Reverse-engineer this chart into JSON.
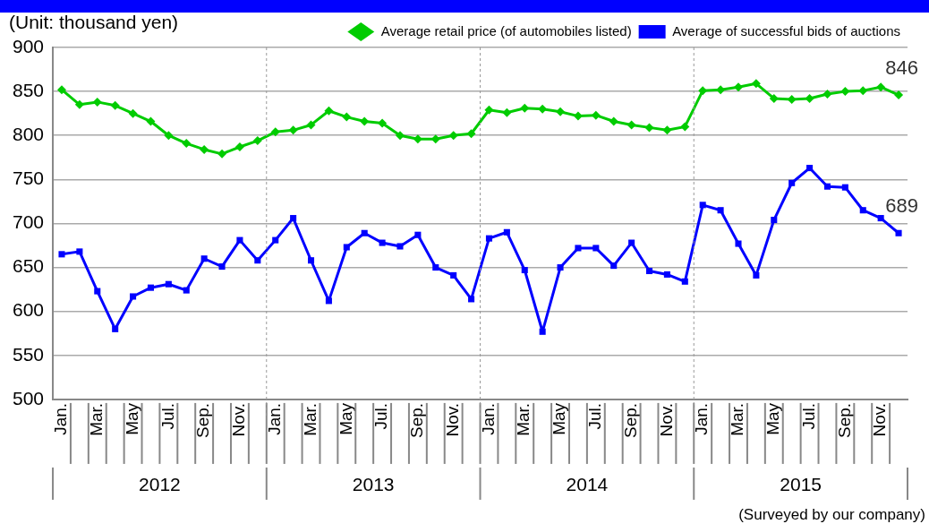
{
  "chart_data": {
    "type": "line",
    "ylabel": "(Unit: thousand yen)",
    "categories": [
      "Jan.",
      null,
      "Mar.",
      null,
      "May",
      null,
      "Jul.",
      null,
      "Sep.",
      null,
      "Nov.",
      null,
      "Jan.",
      null,
      "Mar.",
      null,
      "May",
      null,
      "Jul.",
      null,
      "Sep.",
      null,
      "Nov.",
      null,
      "Jan.",
      null,
      "Mar.",
      null,
      "May",
      null,
      "Jul.",
      null,
      "Sep.",
      null,
      "Nov.",
      null,
      "Jan.",
      null,
      "Mar.",
      null,
      "May",
      null,
      "Jul.",
      null,
      "Sep.",
      null,
      "Nov.",
      null
    ],
    "series": [
      {
        "name": "Average retail price (of automobiles listed)",
        "color": "#00cc00",
        "marker": "diamond",
        "values": [
          852,
          835,
          838,
          834,
          825,
          816,
          800,
          791,
          784,
          779,
          787,
          794,
          804,
          806,
          812,
          828,
          821,
          816,
          814,
          800,
          796,
          796,
          800,
          802,
          829,
          826,
          831,
          830,
          827,
          822,
          823,
          816,
          812,
          809,
          806,
          810,
          851,
          852,
          855,
          859,
          842,
          841,
          842,
          847,
          850,
          851,
          855,
          846
        ],
        "value_labels": [
          null,
          null,
          null,
          null,
          null,
          null,
          null,
          null,
          null,
          null,
          null,
          null,
          null,
          null,
          null,
          null,
          null,
          null,
          null,
          null,
          null,
          null,
          null,
          null,
          null,
          null,
          null,
          null,
          null,
          null,
          null,
          null,
          null,
          null,
          null,
          null,
          null,
          null,
          null,
          null,
          null,
          null,
          null,
          null,
          null,
          null,
          null,
          "846"
        ]
      },
      {
        "name": "Average of successful bids of auctions",
        "color": "#0000ff",
        "marker": "square",
        "values": [
          665,
          668,
          623,
          580,
          617,
          627,
          631,
          624,
          660,
          651,
          681,
          658,
          681,
          706,
          658,
          612,
          673,
          689,
          678,
          674,
          687,
          650,
          641,
          614,
          683,
          690,
          647,
          577,
          650,
          672,
          672,
          652,
          678,
          646,
          642,
          634,
          721,
          715,
          677,
          641,
          704,
          746,
          763,
          742,
          741,
          715,
          706,
          689
        ],
        "value_labels": [
          null,
          null,
          null,
          null,
          null,
          null,
          null,
          null,
          null,
          null,
          null,
          null,
          null,
          null,
          null,
          null,
          null,
          null,
          null,
          null,
          null,
          null,
          null,
          null,
          null,
          null,
          null,
          null,
          null,
          null,
          null,
          null,
          null,
          null,
          null,
          null,
          null,
          null,
          null,
          null,
          null,
          null,
          null,
          null,
          null,
          null,
          null,
          "689"
        ]
      }
    ],
    "ylim": [
      500,
      900
    ],
    "yticks": [
      500,
      550,
      600,
      650,
      700,
      750,
      800,
      850,
      900
    ],
    "grid": "y",
    "legend": "top right",
    "line_style": "solid",
    "annotations": [
      "2012",
      "2013",
      "2014",
      "2015",
      "(Surveyed by our company)"
    ]
  }
}
